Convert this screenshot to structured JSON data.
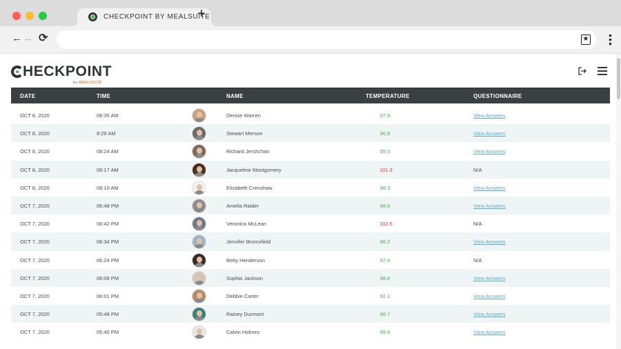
{
  "browser": {
    "tab_title": "CHECKPOINT BY MEALSUITE",
    "new_tab": "+"
  },
  "app": {
    "logo_text": "HECKPOINT",
    "logo_by": "by",
    "logo_brand": "MEALSUITE"
  },
  "table": {
    "headers": {
      "date": "DATE",
      "time": "TIME",
      "name": "NAME",
      "temperature": "TEMPERATURE",
      "questionnaire": "QUESTIONNAIRE"
    },
    "rows": [
      {
        "date": "OCT 8, 2020",
        "time": "08:35 AM",
        "name": "Denise Warren",
        "temperature": "97.6",
        "status": "ok",
        "questionnaire": "View Answers",
        "avatar_bg": "#c9a17f"
      },
      {
        "date": "OCT 8, 2020",
        "time": "8:29 AM",
        "name": "Stewart Merson",
        "temperature": "96.8",
        "status": "ok",
        "questionnaire": "View Answers",
        "avatar_bg": "#6b6b6b"
      },
      {
        "date": "OCT 8, 2020",
        "time": "08:24 AM",
        "name": "Richard Jershchan",
        "temperature": "99.0",
        "status": "ok",
        "questionnaire": "View Answers",
        "avatar_bg": "#7d6a5c"
      },
      {
        "date": "OCT 8, 2020",
        "time": "08:17 AM",
        "name": "Jacqueline Montgomery",
        "temperature": "101.3",
        "status": "high",
        "questionnaire": "N/A",
        "avatar_bg": "#4a2e20"
      },
      {
        "date": "OCT 8, 2020",
        "time": "08:10 AM",
        "name": "Elizabeth Crenshaw",
        "temperature": "98.3",
        "status": "ok",
        "questionnaire": "View Answers",
        "avatar_bg": "#f1f1f1"
      },
      {
        "date": "OCT 7, 2020",
        "time": "06:48 PM",
        "name": "Amelia Raider",
        "temperature": "98.8",
        "status": "ok",
        "questionnaire": "View Answers",
        "avatar_bg": "#8d8d8d"
      },
      {
        "date": "OCT 7, 2020",
        "time": "06:42 PM",
        "name": "Veronica McLean",
        "temperature": "102.6",
        "status": "high",
        "questionnaire": "N/A",
        "avatar_bg": "#6c7a8c"
      },
      {
        "date": "OCT 7, 2020",
        "time": "06:34 PM",
        "name": "Jennifer Bromsfield",
        "temperature": "96.2",
        "status": "ok",
        "questionnaire": "View Answers",
        "avatar_bg": "#9fb3c8"
      },
      {
        "date": "OCT 7, 2020",
        "time": "06:24 PM",
        "name": "Betty Henderson",
        "temperature": "97.4",
        "status": "ok",
        "questionnaire": "N/A",
        "avatar_bg": "#3b2a22"
      },
      {
        "date": "OCT 7, 2020",
        "time": "06:08 PM",
        "name": "Sophia Jackson",
        "temperature": "98.8",
        "status": "ok",
        "questionnaire": "View Answers",
        "avatar_bg": "#cfc7bb"
      },
      {
        "date": "OCT 7, 2020",
        "time": "06:01 PM",
        "name": "Debbie Carter",
        "temperature": "92.1",
        "status": "ok",
        "questionnaire": "View Answers",
        "avatar_bg": "#b98a6a"
      },
      {
        "date": "OCT 7, 2020",
        "time": "05:48 PM",
        "name": "Rainey Durmont",
        "temperature": "98.7",
        "status": "ok",
        "questionnaire": "View Answers",
        "avatar_bg": "#3f7f7a"
      },
      {
        "date": "OCT 7, 2020",
        "time": "05:40 PM",
        "name": "Calvin Holmes",
        "temperature": "99.4",
        "status": "ok",
        "questionnaire": "View Answers",
        "avatar_bg": "#e8e8e8"
      }
    ]
  },
  "colors": {
    "header_bg": "#3a3f41",
    "temp_ok": "#4caf50",
    "temp_high": "#e53935",
    "link": "#5aa9d6",
    "row_alt": "#eff5f5"
  }
}
